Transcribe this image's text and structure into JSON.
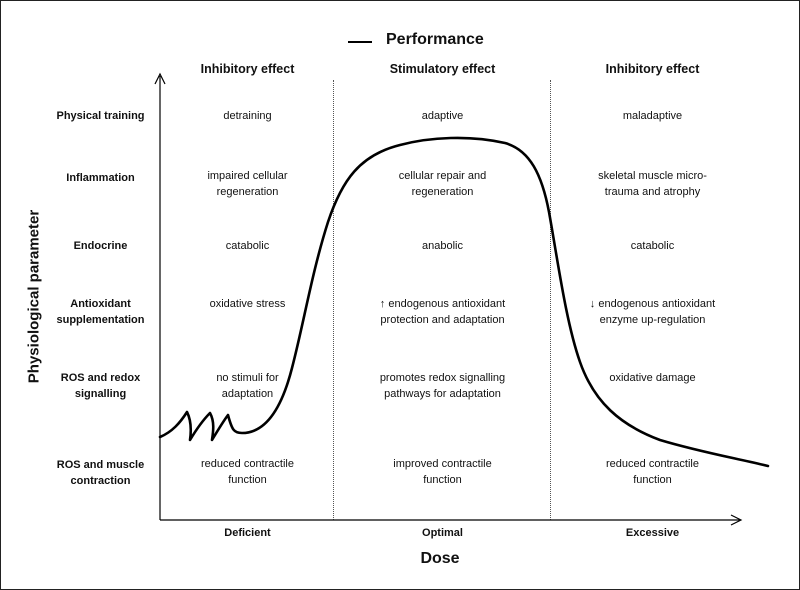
{
  "legend": {
    "performance_label": "Performance"
  },
  "axes": {
    "y_label": "Physiological parameter",
    "x_label": "Dose",
    "x_categories": [
      "Deficient",
      "Optimal",
      "Excessive"
    ]
  },
  "columns": [
    "Inhibitory effect",
    "Stimulatory effect",
    "Inhibitory effect"
  ],
  "rows": [
    {
      "label": [
        "Physical training"
      ],
      "cells": [
        [
          "detraining"
        ],
        [
          "adaptive"
        ],
        [
          "maladaptive"
        ]
      ]
    },
    {
      "label": [
        "Inflammation"
      ],
      "cells": [
        [
          "impaired cellular",
          "regeneration"
        ],
        [
          "cellular repair and",
          "regeneration"
        ],
        [
          "skeletal muscle micro-",
          "trauma and atrophy"
        ]
      ]
    },
    {
      "label": [
        "Endocrine"
      ],
      "cells": [
        [
          "catabolic"
        ],
        [
          "anabolic"
        ],
        [
          "catabolic"
        ]
      ]
    },
    {
      "label": [
        "Antioxidant",
        "supplementation"
      ],
      "cells": [
        [
          "oxidative stress"
        ],
        [
          "↑ endogenous antioxidant",
          "protection and adaptation"
        ],
        [
          "↓ endogenous antioxidant",
          "enzyme up-regulation"
        ]
      ]
    },
    {
      "label": [
        "ROS and redox",
        "signalling"
      ],
      "cells": [
        [
          "no stimuli for",
          "adaptation"
        ],
        [
          "promotes redox signalling",
          "pathways for adaptation"
        ],
        [
          "oxidative damage"
        ]
      ]
    },
    {
      "label": [
        "ROS and muscle",
        "contraction"
      ],
      "cells": [
        [
          "reduced contractile",
          "function"
        ],
        [
          "improved contractile",
          "function"
        ],
        [
          "reduced contractile",
          "function"
        ]
      ]
    }
  ]
}
